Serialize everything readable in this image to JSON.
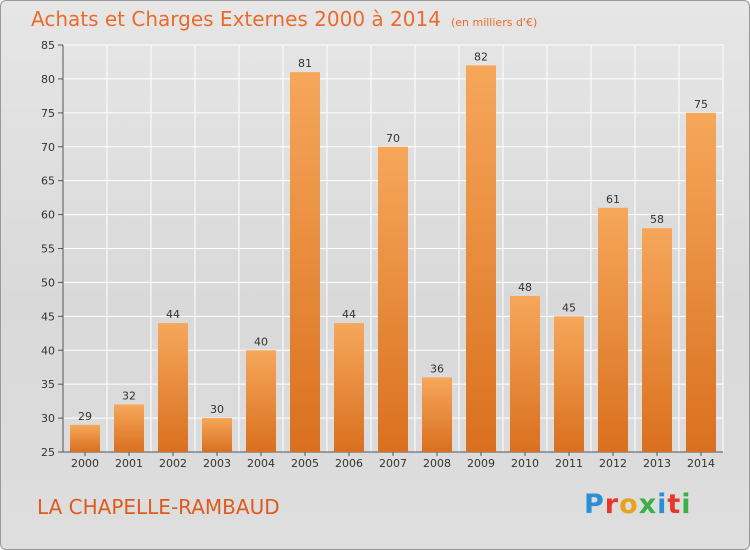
{
  "header": {
    "title": "Achats et Charges Externes 2000 à 2014",
    "unit": "(en milliers d'€)"
  },
  "footer": {
    "town": "LA CHAPELLE-RAMBAUD",
    "logo_letters": [
      "P",
      "r",
      "o",
      "x",
      "i",
      "t",
      "i"
    ],
    "logo_colors": [
      "#2a8fd6",
      "#e8362a",
      "#e8a21d",
      "#3bb04a",
      "#2a8fd6",
      "#e8362a",
      "#3bb04a"
    ]
  },
  "colors": {
    "bar_light": "#f6a75a",
    "bar_dark": "#d9701f",
    "grid": "#ffffff",
    "title": "#ea6b2b"
  },
  "chart_data": {
    "type": "bar",
    "title": "Achats et Charges Externes 2000 à 2014",
    "subtitle": "(en milliers d'€)",
    "categories": [
      "2000",
      "2001",
      "2002",
      "2003",
      "2004",
      "2005",
      "2006",
      "2007",
      "2008",
      "2009",
      "2010",
      "2011",
      "2012",
      "2013",
      "2014"
    ],
    "values": [
      29,
      32,
      44,
      30,
      40,
      81,
      44,
      70,
      36,
      82,
      48,
      45,
      61,
      58,
      75
    ],
    "ylim": [
      25,
      85
    ],
    "yticks": [
      25,
      30,
      35,
      40,
      45,
      50,
      55,
      60,
      65,
      70,
      75,
      80,
      85
    ],
    "grid": true,
    "data_labels": true
  }
}
